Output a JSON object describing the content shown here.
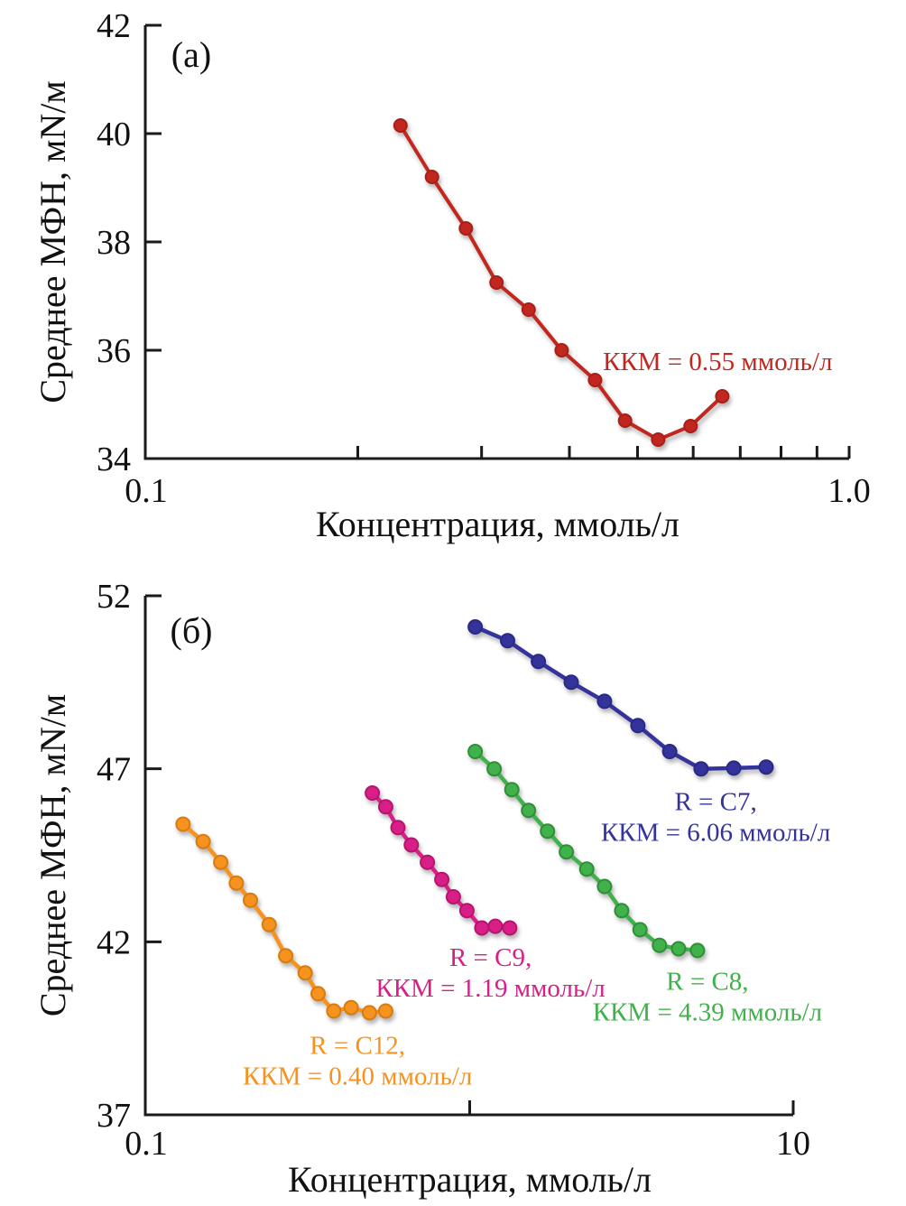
{
  "figure": {
    "background": "#ffffff",
    "description_labels": {
      "panel_a": "(а)",
      "panel_b": "(б)"
    }
  },
  "chart_data": [
    {
      "id": "a",
      "type": "line",
      "panel_label": "(а)",
      "title": "",
      "xlabel": "Концентрация, ммоль/л",
      "ylabel": "Среднее МФН, мN/м",
      "x_scale": "log",
      "xlim": [
        0.1,
        1.0
      ],
      "ylim": [
        34,
        42
      ],
      "grid": false,
      "legend": "none",
      "x_tick_labels": [
        {
          "value": 0.1,
          "label": "0.1"
        },
        {
          "value": 1.0,
          "label": "1.0"
        }
      ],
      "x_minor_ticks": [
        0.2,
        0.3,
        0.4,
        0.5,
        0.6,
        0.7,
        0.8,
        0.9,
        1.0
      ],
      "y_ticks": [
        34,
        36,
        38,
        40,
        42
      ],
      "series": [
        {
          "name": "Среднее МФН",
          "color": "#c1271f",
          "marker_edge": "#a81f18",
          "x": [
            0.23,
            0.255,
            0.285,
            0.315,
            0.35,
            0.39,
            0.435,
            0.48,
            0.535,
            0.595,
            0.66
          ],
          "y": [
            40.15,
            39.2,
            38.25,
            37.25,
            36.75,
            36.0,
            35.45,
            34.7,
            34.35,
            34.6,
            35.15
          ]
        }
      ],
      "annotations": [
        {
          "lines": [
            "ККМ = 0.55 ммоль/л"
          ],
          "color": "#c1271f",
          "x": 0.65,
          "y": 35.8
        }
      ]
    },
    {
      "id": "b",
      "type": "line",
      "panel_label": "(б)",
      "title": "",
      "xlabel": "Концентрация, ммоль/л",
      "ylabel": "Среднее МФН, мN/м",
      "x_scale": "log",
      "xlim": [
        0.1,
        10
      ],
      "ylim": [
        37,
        52
      ],
      "grid": false,
      "legend": "none",
      "x_tick_labels": [
        {
          "value": 0.1,
          "label": "0.1"
        },
        {
          "value": 10,
          "label": "10"
        }
      ],
      "x_minor_ticks": [
        1,
        10
      ],
      "y_ticks": [
        37,
        42,
        47,
        52
      ],
      "series": [
        {
          "name": "R = C12",
          "color": "#f6921e",
          "marker_edge": "#d87b10",
          "x": [
            0.13,
            0.15,
            0.17,
            0.19,
            0.21,
            0.24,
            0.27,
            0.31,
            0.34,
            0.38,
            0.43,
            0.49,
            0.55
          ],
          "y": [
            45.4,
            44.9,
            44.3,
            43.7,
            43.2,
            42.5,
            41.6,
            41.1,
            40.5,
            40.0,
            40.1,
            39.95,
            40.0
          ]
        },
        {
          "name": "R = C9",
          "color": "#d91f87",
          "marker_edge": "#b5156e",
          "x": [
            0.5,
            0.55,
            0.6,
            0.66,
            0.74,
            0.82,
            0.89,
            0.98,
            1.09,
            1.2,
            1.33
          ],
          "y": [
            46.3,
            45.9,
            45.3,
            44.8,
            44.3,
            43.8,
            43.3,
            42.9,
            42.4,
            42.45,
            42.4
          ]
        },
        {
          "name": "R = C8",
          "color": "#41b14b",
          "marker_edge": "#2e8f37",
          "x": [
            1.04,
            1.19,
            1.35,
            1.52,
            1.74,
            1.99,
            2.3,
            2.61,
            2.95,
            3.36,
            3.86,
            4.42,
            5.06
          ],
          "y": [
            47.5,
            47.0,
            46.4,
            45.8,
            45.2,
            44.6,
            44.1,
            43.6,
            42.9,
            42.35,
            41.9,
            41.8,
            41.75
          ]
        },
        {
          "name": "R = C7",
          "color": "#34339b",
          "marker_edge": "#2a2a85",
          "x": [
            1.04,
            1.31,
            1.63,
            2.06,
            2.61,
            3.31,
            4.15,
            5.19,
            6.55,
            8.25
          ],
          "y": [
            51.1,
            50.7,
            50.1,
            49.5,
            48.95,
            48.25,
            47.5,
            47.0,
            47.02,
            47.05
          ]
        }
      ],
      "annotations": [
        {
          "lines": [
            "R = C7,",
            "ККМ = 6.06 ммоль/л"
          ],
          "color": "#34339b",
          "x": 5.76,
          "y": 45.6
        },
        {
          "lines": [
            "R = C9,",
            "ККМ = 1.19 ммоль/л"
          ],
          "color": "#d91f87",
          "x": 1.16,
          "y": 41.1
        },
        {
          "lines": [
            "R = C8,",
            "ККМ = 4.39 ммоль/л"
          ],
          "color": "#41b14b",
          "x": 5.43,
          "y": 40.4
        },
        {
          "lines": [
            "R = C12,",
            "ККМ = 0.40 ммоль/л"
          ],
          "color": "#f6921e",
          "x": 0.45,
          "y": 38.55
        }
      ]
    }
  ]
}
